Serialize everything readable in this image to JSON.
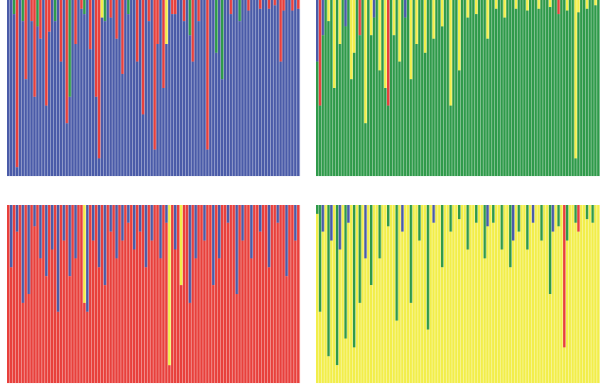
{
  "colors": {
    "blue": "#4a5ba8",
    "green": "#2f9a4a",
    "red": "#e8403c",
    "yellow": "#f2ee4a",
    "separator": "#ffffff"
  },
  "chart_data": [
    {
      "type": "bar",
      "stacked": true,
      "orientation": "vertical",
      "position": "top-left",
      "bar_count": 100,
      "ylim": [
        0,
        1
      ],
      "component_order": [
        "blue",
        "green",
        "red",
        "yellow"
      ],
      "dominant": "blue",
      "minor": [
        {
          "bar": 2,
          "color": "green",
          "share": 0.08
        },
        {
          "bar": 3,
          "color": "red",
          "share": 0.95
        },
        {
          "bar": 5,
          "color": "green",
          "share": 0.12
        },
        {
          "bar": 6,
          "color": "red",
          "share": 0.45
        },
        {
          "bar": 8,
          "color": "red",
          "share": 0.12
        },
        {
          "bar": 9,
          "color": "red",
          "share": 0.55
        },
        {
          "bar": 10,
          "color": "green",
          "share": 0.15
        },
        {
          "bar": 11,
          "color": "red",
          "share": 0.22
        },
        {
          "bar": 13,
          "color": "red",
          "share": 0.6
        },
        {
          "bar": 14,
          "color": "red",
          "share": 0.18
        },
        {
          "bar": 16,
          "color": "green",
          "share": 0.12
        },
        {
          "bar": 18,
          "color": "red",
          "share": 0.35
        },
        {
          "bar": 20,
          "color": "red",
          "share": 0.7
        },
        {
          "bar": 21,
          "color": "green",
          "share": 0.55
        },
        {
          "bar": 23,
          "color": "red",
          "share": 0.25
        },
        {
          "bar": 25,
          "color": "red",
          "share": 0.05
        },
        {
          "bar": 26,
          "color": "green",
          "share": 0.08
        },
        {
          "bar": 28,
          "color": "red",
          "share": 0.28
        },
        {
          "bar": 30,
          "color": "red",
          "share": 0.55
        },
        {
          "bar": 31,
          "color": "red",
          "share": 0.9
        },
        {
          "bar": 32,
          "color": "yellow",
          "share": 0.1
        },
        {
          "bar": 33,
          "color": "green",
          "share": 0.12
        },
        {
          "bar": 35,
          "color": "red",
          "share": 0.1
        },
        {
          "bar": 37,
          "color": "red",
          "share": 0.22
        },
        {
          "bar": 39,
          "color": "red",
          "share": 0.42
        },
        {
          "bar": 41,
          "color": "green",
          "share": 0.08
        },
        {
          "bar": 44,
          "color": "red",
          "share": 0.35
        },
        {
          "bar": 46,
          "color": "red",
          "share": 0.65
        },
        {
          "bar": 48,
          "color": "red",
          "share": 0.12
        },
        {
          "bar": 50,
          "color": "red",
          "share": 0.85
        },
        {
          "bar": 51,
          "color": "red",
          "share": 0.25
        },
        {
          "bar": 53,
          "color": "red",
          "share": 0.5
        },
        {
          "bar": 54,
          "color": "yellow",
          "share": 0.25
        },
        {
          "bar": 56,
          "color": "red",
          "share": 0.08
        },
        {
          "bar": 57,
          "color": "red",
          "share": 0.08
        },
        {
          "bar": 60,
          "color": "red",
          "share": 0.12
        },
        {
          "bar": 62,
          "color": "green",
          "share": 0.2
        },
        {
          "bar": 63,
          "color": "red",
          "share": 0.35
        },
        {
          "bar": 65,
          "color": "red",
          "share": 0.12
        },
        {
          "bar": 68,
          "color": "red",
          "share": 0.85
        },
        {
          "bar": 71,
          "color": "green",
          "share": 0.3
        },
        {
          "bar": 73,
          "color": "green",
          "share": 0.45
        },
        {
          "bar": 76,
          "color": "red",
          "share": 0.08
        },
        {
          "bar": 79,
          "color": "green",
          "share": 0.12
        },
        {
          "bar": 82,
          "color": "red",
          "share": 0.06
        },
        {
          "bar": 86,
          "color": "red",
          "share": 0.05
        },
        {
          "bar": 89,
          "color": "red",
          "share": 0.05
        },
        {
          "bar": 91,
          "color": "red",
          "share": 0.03
        },
        {
          "bar": 93,
          "color": "red",
          "share": 0.35
        },
        {
          "bar": 94,
          "color": "red",
          "share": 0.06
        },
        {
          "bar": 97,
          "color": "red",
          "share": 0.06
        },
        {
          "bar": 99,
          "color": "red",
          "share": 0.05
        }
      ]
    },
    {
      "type": "bar",
      "stacked": true,
      "orientation": "vertical",
      "position": "top-right",
      "bar_count": 100,
      "ylim": [
        0,
        1
      ],
      "component_order": [
        "blue",
        "green",
        "red",
        "yellow"
      ],
      "dominant": "green",
      "minor": [
        {
          "bar": 0,
          "color": "blue",
          "share": 0.35
        },
        {
          "bar": 1,
          "color": "red",
          "share": 0.6
        },
        {
          "bar": 2,
          "color": "blue",
          "share": 0.2
        },
        {
          "bar": 4,
          "color": "yellow",
          "share": 0.12
        },
        {
          "bar": 6,
          "color": "yellow",
          "share": 0.5
        },
        {
          "bar": 8,
          "color": "yellow",
          "share": 0.25
        },
        {
          "bar": 10,
          "color": "blue",
          "share": 0.15
        },
        {
          "bar": 12,
          "color": "yellow",
          "share": 0.45
        },
        {
          "bar": 13,
          "color": "yellow",
          "share": 0.3
        },
        {
          "bar": 15,
          "color": "red",
          "share": 0.2
        },
        {
          "bar": 17,
          "color": "yellow",
          "share": 0.7
        },
        {
          "bar": 19,
          "color": "yellow",
          "share": 0.2
        },
        {
          "bar": 20,
          "color": "blue",
          "share": 0.1
        },
        {
          "bar": 22,
          "color": "yellow",
          "share": 0.4
        },
        {
          "bar": 24,
          "color": "yellow",
          "share": 0.5
        },
        {
          "bar": 25,
          "color": "red",
          "share": 0.6
        },
        {
          "bar": 27,
          "color": "yellow",
          "share": 0.2
        },
        {
          "bar": 29,
          "color": "yellow",
          "share": 0.35
        },
        {
          "bar": 31,
          "color": "blue",
          "share": 0.1
        },
        {
          "bar": 33,
          "color": "yellow",
          "share": 0.45
        },
        {
          "bar": 35,
          "color": "yellow",
          "share": 0.25
        },
        {
          "bar": 38,
          "color": "yellow",
          "share": 0.3
        },
        {
          "bar": 41,
          "color": "yellow",
          "share": 0.22
        },
        {
          "bar": 44,
          "color": "yellow",
          "share": 0.15
        },
        {
          "bar": 47,
          "color": "yellow",
          "share": 0.6
        },
        {
          "bar": 50,
          "color": "yellow",
          "share": 0.4
        },
        {
          "bar": 53,
          "color": "yellow",
          "share": 0.1
        },
        {
          "bar": 56,
          "color": "yellow",
          "share": 0.08
        },
        {
          "bar": 60,
          "color": "yellow",
          "share": 0.22
        },
        {
          "bar": 63,
          "color": "yellow",
          "share": 0.05
        },
        {
          "bar": 66,
          "color": "yellow",
          "share": 0.1
        },
        {
          "bar": 70,
          "color": "yellow",
          "share": 0.05
        },
        {
          "bar": 74,
          "color": "yellow",
          "share": 0.06
        },
        {
          "bar": 78,
          "color": "yellow",
          "share": 0.05
        },
        {
          "bar": 82,
          "color": "yellow",
          "share": 0.04
        },
        {
          "bar": 85,
          "color": "red",
          "share": 0.08
        },
        {
          "bar": 88,
          "color": "yellow",
          "share": 0.06
        },
        {
          "bar": 91,
          "color": "yellow",
          "share": 0.9
        },
        {
          "bar": 92,
          "color": "yellow",
          "share": 0.07
        },
        {
          "bar": 95,
          "color": "yellow",
          "share": 0.05
        },
        {
          "bar": 98,
          "color": "yellow",
          "share": 0.03
        }
      ]
    },
    {
      "type": "bar",
      "stacked": true,
      "orientation": "vertical",
      "position": "bottom-left",
      "bar_count": 100,
      "ylim": [
        0,
        1
      ],
      "component_order": [
        "blue",
        "green",
        "red",
        "yellow"
      ],
      "dominant": "red",
      "minor": [
        {
          "bar": 1,
          "color": "blue",
          "share": 0.35
        },
        {
          "bar": 3,
          "color": "blue",
          "share": 0.15
        },
        {
          "bar": 5,
          "color": "blue",
          "share": 0.55
        },
        {
          "bar": 7,
          "color": "blue",
          "share": 0.5
        },
        {
          "bar": 9,
          "color": "blue",
          "share": 0.12
        },
        {
          "bar": 11,
          "color": "blue",
          "share": 0.3
        },
        {
          "bar": 13,
          "color": "blue",
          "share": 0.4
        },
        {
          "bar": 15,
          "color": "blue",
          "share": 0.25
        },
        {
          "bar": 17,
          "color": "blue",
          "share": 0.6
        },
        {
          "bar": 19,
          "color": "blue",
          "share": 0.2
        },
        {
          "bar": 21,
          "color": "blue",
          "share": 0.4
        },
        {
          "bar": 23,
          "color": "blue",
          "share": 0.3
        },
        {
          "bar": 26,
          "color": "yellow",
          "share": 0.55
        },
        {
          "bar": 27,
          "color": "blue",
          "share": 0.6
        },
        {
          "bar": 29,
          "color": "blue",
          "share": 0.2
        },
        {
          "bar": 31,
          "color": "blue",
          "share": 0.35
        },
        {
          "bar": 33,
          "color": "blue",
          "share": 0.45
        },
        {
          "bar": 35,
          "color": "blue",
          "share": 0.15
        },
        {
          "bar": 37,
          "color": "blue",
          "share": 0.3
        },
        {
          "bar": 39,
          "color": "blue",
          "share": 0.2
        },
        {
          "bar": 41,
          "color": "blue",
          "share": 0.1
        },
        {
          "bar": 43,
          "color": "blue",
          "share": 0.25
        },
        {
          "bar": 45,
          "color": "blue",
          "share": 0.15
        },
        {
          "bar": 47,
          "color": "blue",
          "share": 0.35
        },
        {
          "bar": 49,
          "color": "blue",
          "share": 0.2
        },
        {
          "bar": 52,
          "color": "blue",
          "share": 0.3
        },
        {
          "bar": 54,
          "color": "blue",
          "share": 0.1
        },
        {
          "bar": 55,
          "color": "yellow",
          "share": 0.9
        },
        {
          "bar": 57,
          "color": "blue",
          "share": 0.25
        },
        {
          "bar": 59,
          "color": "yellow",
          "share": 0.45
        },
        {
          "bar": 62,
          "color": "blue",
          "share": 0.55
        },
        {
          "bar": 64,
          "color": "blue",
          "share": 0.3
        },
        {
          "bar": 67,
          "color": "blue",
          "share": 0.2
        },
        {
          "bar": 70,
          "color": "blue",
          "share": 0.45
        },
        {
          "bar": 72,
          "color": "blue",
          "share": 0.3
        },
        {
          "bar": 75,
          "color": "blue",
          "share": 0.1
        },
        {
          "bar": 78,
          "color": "blue",
          "share": 0.5
        },
        {
          "bar": 80,
          "color": "blue",
          "share": 0.2
        },
        {
          "bar": 83,
          "color": "blue",
          "share": 0.3
        },
        {
          "bar": 86,
          "color": "blue",
          "share": 0.15
        },
        {
          "bar": 89,
          "color": "blue",
          "share": 0.35
        },
        {
          "bar": 92,
          "color": "blue",
          "share": 0.1
        },
        {
          "bar": 95,
          "color": "blue",
          "share": 0.4
        },
        {
          "bar": 98,
          "color": "blue",
          "share": 0.2
        }
      ]
    },
    {
      "type": "bar",
      "stacked": true,
      "orientation": "vertical",
      "position": "bottom-right",
      "bar_count": 100,
      "ylim": [
        0,
        1
      ],
      "component_order": [
        "blue",
        "green",
        "red",
        "yellow"
      ],
      "dominant": "yellow",
      "minor": [
        {
          "bar": 0,
          "color": "green",
          "share": 0.05
        },
        {
          "bar": 1,
          "color": "green",
          "share": 0.6
        },
        {
          "bar": 2,
          "color": "blue",
          "share": 0.15
        },
        {
          "bar": 4,
          "color": "green",
          "share": 0.85
        },
        {
          "bar": 5,
          "color": "blue",
          "share": 0.2
        },
        {
          "bar": 7,
          "color": "green",
          "share": 0.9
        },
        {
          "bar": 8,
          "color": "blue",
          "share": 0.25
        },
        {
          "bar": 10,
          "color": "green",
          "share": 0.75
        },
        {
          "bar": 11,
          "color": "blue",
          "share": 0.1
        },
        {
          "bar": 13,
          "color": "green",
          "share": 0.8
        },
        {
          "bar": 15,
          "color": "green",
          "share": 0.55
        },
        {
          "bar": 17,
          "color": "blue",
          "share": 0.3
        },
        {
          "bar": 19,
          "color": "green",
          "share": 0.45
        },
        {
          "bar": 22,
          "color": "green",
          "share": 0.3
        },
        {
          "bar": 25,
          "color": "green",
          "share": 0.12
        },
        {
          "bar": 28,
          "color": "green",
          "share": 0.65
        },
        {
          "bar": 30,
          "color": "blue",
          "share": 0.15
        },
        {
          "bar": 33,
          "color": "green",
          "share": 0.55
        },
        {
          "bar": 36,
          "color": "green",
          "share": 0.2
        },
        {
          "bar": 39,
          "color": "green",
          "share": 0.7
        },
        {
          "bar": 41,
          "color": "blue",
          "share": 0.1
        },
        {
          "bar": 44,
          "color": "green",
          "share": 0.35
        },
        {
          "bar": 47,
          "color": "green",
          "share": 0.15
        },
        {
          "bar": 50,
          "color": "green",
          "share": 0.08
        },
        {
          "bar": 53,
          "color": "green",
          "share": 0.25
        },
        {
          "bar": 56,
          "color": "green",
          "share": 0.1
        },
        {
          "bar": 59,
          "color": "green",
          "share": 0.3
        },
        {
          "bar": 60,
          "color": "blue",
          "share": 0.12
        },
        {
          "bar": 62,
          "color": "green",
          "share": 0.1
        },
        {
          "bar": 65,
          "color": "green",
          "share": 0.25
        },
        {
          "bar": 68,
          "color": "green",
          "share": 0.35
        },
        {
          "bar": 69,
          "color": "blue",
          "share": 0.2
        },
        {
          "bar": 71,
          "color": "green",
          "share": 0.15
        },
        {
          "bar": 74,
          "color": "green",
          "share": 0.25
        },
        {
          "bar": 76,
          "color": "blue",
          "share": 0.1
        },
        {
          "bar": 79,
          "color": "green",
          "share": 0.2
        },
        {
          "bar": 82,
          "color": "green",
          "share": 0.5
        },
        {
          "bar": 83,
          "color": "blue",
          "share": 0.15
        },
        {
          "bar": 85,
          "color": "green",
          "share": 0.12
        },
        {
          "bar": 87,
          "color": "red",
          "share": 0.8
        },
        {
          "bar": 88,
          "color": "green",
          "share": 0.2
        },
        {
          "bar": 91,
          "color": "green",
          "share": 0.1
        },
        {
          "bar": 92,
          "color": "red",
          "share": 0.15
        },
        {
          "bar": 95,
          "color": "green",
          "share": 0.08
        },
        {
          "bar": 97,
          "color": "green",
          "share": 0.1
        }
      ]
    }
  ]
}
